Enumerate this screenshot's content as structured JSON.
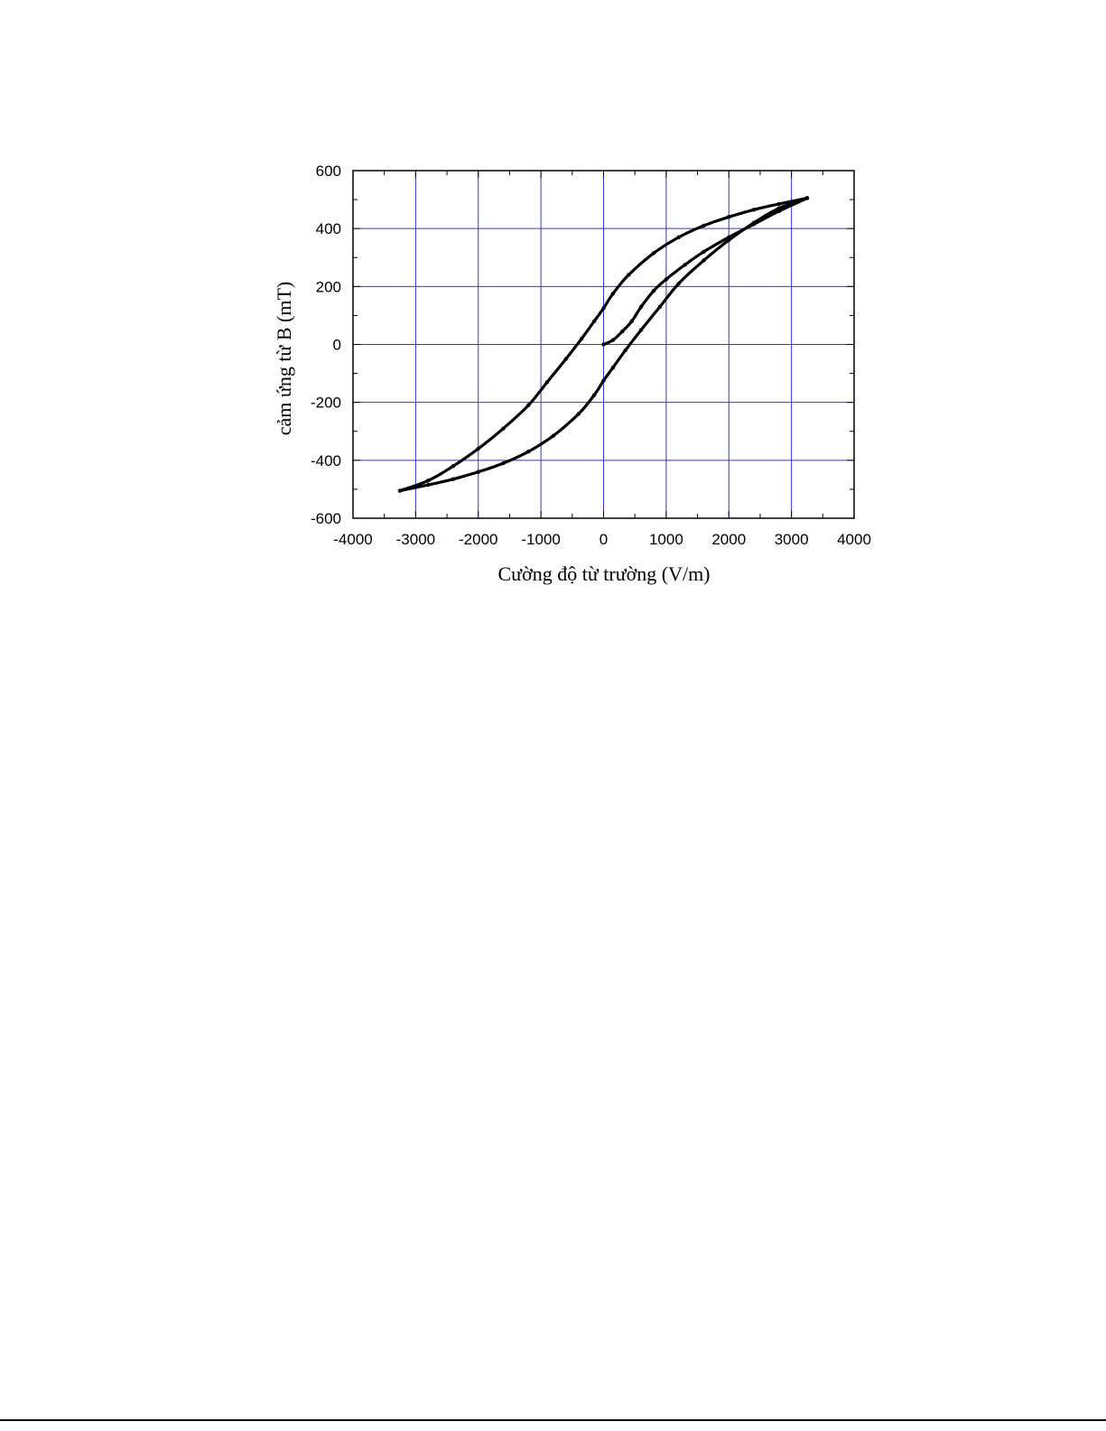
{
  "chart_data": {
    "type": "scatter",
    "title": "",
    "xlabel": "Cường độ từ trường (V/m)",
    "ylabel": "cảm ứng từ B (mT)",
    "xlim": [
      -4000,
      4000
    ],
    "ylim": [
      -600,
      600
    ],
    "xticks": [
      -4000,
      -3000,
      -2000,
      -1000,
      0,
      1000,
      2000,
      3000,
      4000
    ],
    "yticks": [
      -600,
      -400,
      -200,
      0,
      200,
      400,
      600
    ],
    "xtick_labels": [
      "-4000",
      "-3000",
      "-2000",
      "-1000",
      "0",
      "1000",
      "2000",
      "3000",
      "4000"
    ],
    "ytick_labels": [
      "-600",
      "-400",
      "-200",
      "0",
      "200",
      "400",
      "600"
    ],
    "grid": true,
    "grid_color": "#3333dd",
    "marker_color": "#000000",
    "legend": "none",
    "series": [
      {
        "x": [
          0,
          150,
          300,
          450,
          600,
          800,
          1000,
          1300,
          1600,
          2000,
          2400,
          2800,
          3250
        ],
        "y": [
          0,
          15,
          45,
          80,
          130,
          185,
          225,
          275,
          320,
          370,
          415,
          460,
          505
        ]
      },
      {
        "x": [
          3250,
          2800,
          2400,
          2000,
          1600,
          1200,
          800,
          400,
          150,
          0,
          -150,
          -350,
          -600,
          -900,
          -1200,
          -1600,
          -2000,
          -2400,
          -2800,
          -3250
        ],
        "y": [
          505,
          485,
          465,
          440,
          410,
          370,
          315,
          240,
          175,
          125,
          80,
          20,
          -50,
          -130,
          -210,
          -290,
          -360,
          -420,
          -470,
          -505
        ]
      },
      {
        "x": [
          -3250,
          -2800,
          -2400,
          -2000,
          -1600,
          -1200,
          -800,
          -400,
          -150,
          0,
          150,
          350,
          600,
          900,
          1200,
          1600,
          2000,
          2400,
          2800,
          3250
        ],
        "y": [
          -505,
          -485,
          -465,
          -440,
          -410,
          -370,
          -315,
          -240,
          -175,
          -125,
          -80,
          -20,
          50,
          130,
          210,
          290,
          360,
          420,
          470,
          505
        ]
      }
    ]
  }
}
